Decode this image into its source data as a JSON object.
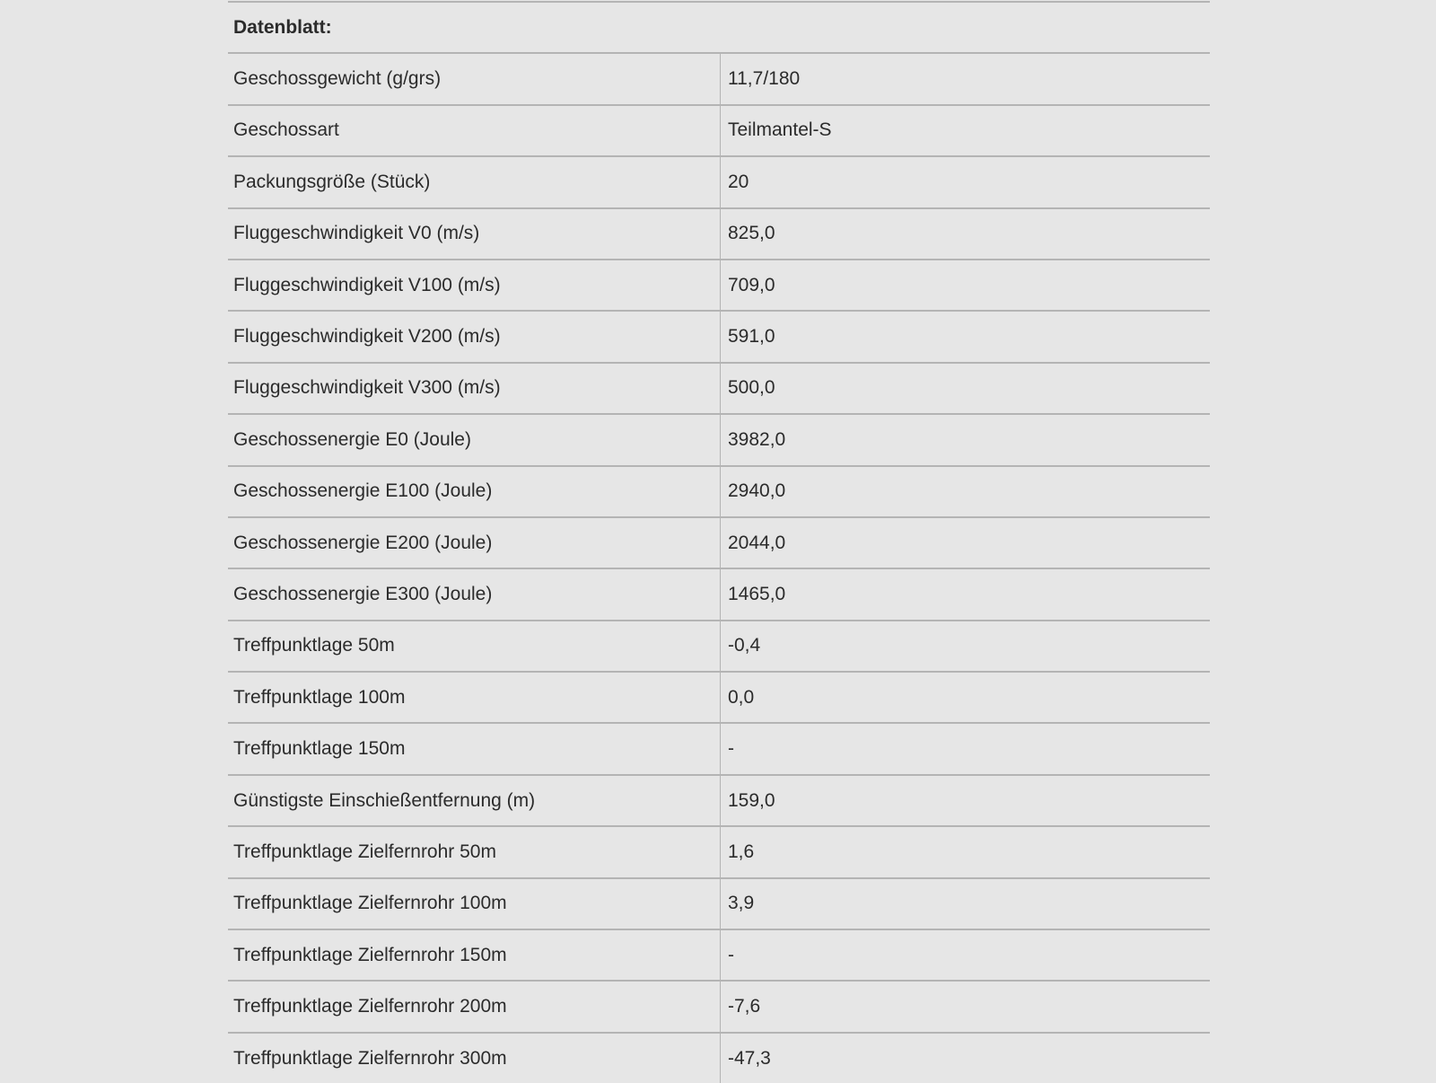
{
  "heading": "Datenblatt:",
  "rows": [
    {
      "label": "Geschossgewicht (g/grs)",
      "value": "11,7/180"
    },
    {
      "label": "Geschossart",
      "value": "Teilmantel-S"
    },
    {
      "label": "Packungsgröße (Stück)",
      "value": "20"
    },
    {
      "label": "Fluggeschwindigkeit V0 (m/s)",
      "value": "825,0"
    },
    {
      "label": "Fluggeschwindigkeit V100 (m/s)",
      "value": "709,0"
    },
    {
      "label": "Fluggeschwindigkeit V200 (m/s)",
      "value": "591,0"
    },
    {
      "label": "Fluggeschwindigkeit V300 (m/s)",
      "value": "500,0"
    },
    {
      "label": "Geschossenergie E0 (Joule)",
      "value": "3982,0"
    },
    {
      "label": "Geschossenergie E100 (Joule)",
      "value": "2940,0"
    },
    {
      "label": "Geschossenergie E200 (Joule)",
      "value": "2044,0"
    },
    {
      "label": "Geschossenergie E300 (Joule)",
      "value": "1465,0"
    },
    {
      "label": "Treffpunktlage 50m",
      "value": "-0,4"
    },
    {
      "label": "Treffpunktlage 100m",
      "value": "0,0"
    },
    {
      "label": "Treffpunktlage 150m",
      "value": "-"
    },
    {
      "label": "Günstigste Einschießentfernung (m)",
      "value": "159,0"
    },
    {
      "label": "Treffpunktlage Zielfernrohr 50m",
      "value": "1,6"
    },
    {
      "label": "Treffpunktlage Zielfernrohr 100m",
      "value": "3,9"
    },
    {
      "label": "Treffpunktlage Zielfernrohr 150m",
      "value": "-"
    },
    {
      "label": "Treffpunktlage Zielfernrohr 200m",
      "value": "-7,6"
    },
    {
      "label": "Treffpunktlage Zielfernrohr 300m",
      "value": "-47,3"
    }
  ]
}
